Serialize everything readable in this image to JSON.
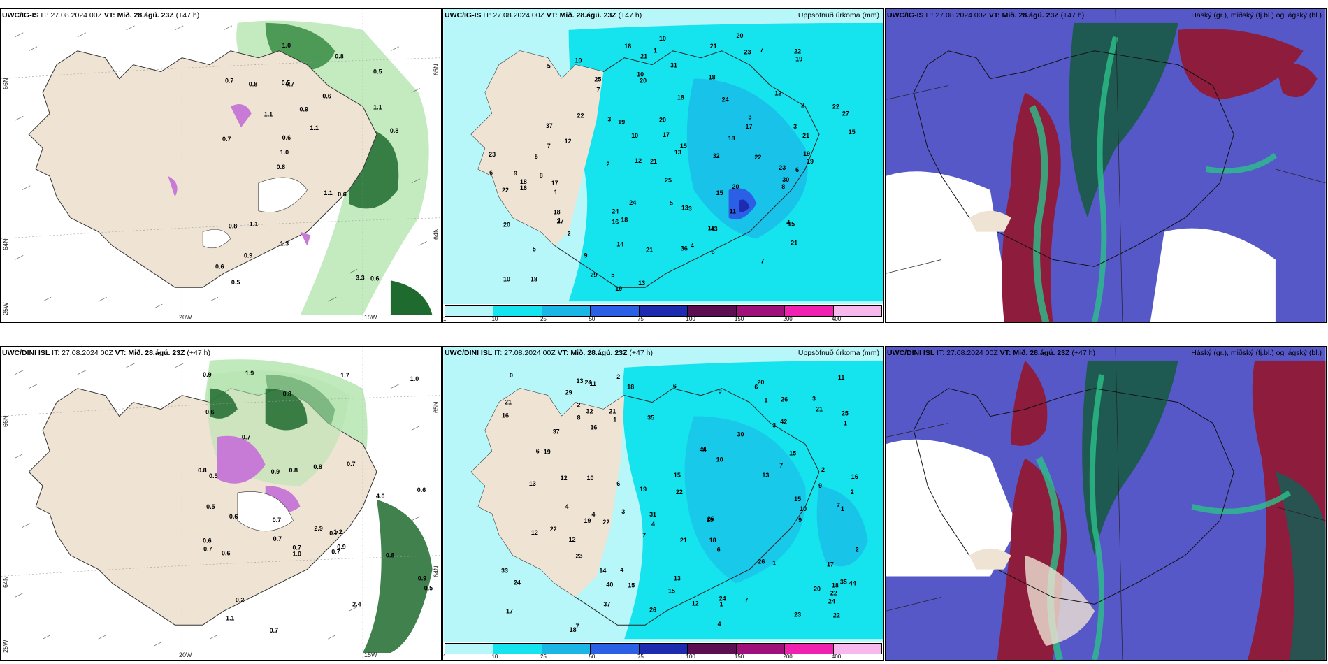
{
  "colors": {
    "land": "#efe3d4",
    "sea_white": "#ffffff",
    "precip_light": "#b7f7f9",
    "precip_cyan": "#15e3ee",
    "precip_deep": "#1ab7e6",
    "precip_blue": "#2b5fe6",
    "precip_navy": "#1c2bb0",
    "green_light": "#b5e5b0",
    "green_dark": "#1f6b2f",
    "cloud_blue": "#5758c8",
    "cloud_red": "#8e1c3c",
    "cloud_teal": "#1e5a52",
    "cloud_green": "#2bc08a"
  },
  "panels": [
    {
      "model": "UWC/IG-IS",
      "header": "IT: 27.08.2024 00Z",
      "vt_label": "VT:",
      "vt": "Mið. 28.ágú. 23Z",
      "lead": "(+47 h)",
      "right_title": "",
      "lon_labels": [
        "20W",
        "15W"
      ],
      "lat_labels": [
        "66N",
        "64N",
        "25W",
        "65N",
        "64N"
      ],
      "numbers": [
        "0.6",
        "0.7",
        "0.5",
        "0.8",
        "0.6",
        "0.5",
        "0.5",
        "0.9",
        "0.8",
        "1.1",
        "0.6",
        "0.9",
        "0.7",
        "1.1",
        "0.6",
        "0.7",
        "1.0",
        "0.8",
        "1.1",
        "1.1",
        "1.0",
        "1.3",
        "0.6",
        "0.8",
        "0.8",
        "1.1",
        "3.3"
      ]
    },
    {
      "model": "UWC/IG-IS",
      "header": "IT: 27.08.2024 00Z",
      "vt_label": "VT:",
      "vt": "Mið. 28.ágú. 23Z",
      "lead": "(+47 h)",
      "right_title": "Uppsöfnuð úrkoma (mm)",
      "numbers": [
        "5",
        "7",
        "10",
        "12",
        "13",
        "12",
        "1",
        "1",
        "2",
        "3",
        "9",
        "10",
        "11",
        "13",
        "13",
        "18",
        "21",
        "23",
        "27",
        "5",
        "6",
        "1",
        "10",
        "15",
        "17",
        "14",
        "18",
        "21",
        "18",
        "20",
        "37",
        "2",
        "4",
        "5",
        "15",
        "16",
        "22",
        "32",
        "24",
        "30",
        "27",
        "31",
        "21",
        "17",
        "6",
        "7",
        "15",
        "36",
        "24",
        "43",
        "19",
        "29",
        "20",
        "21",
        "2",
        "3",
        "3",
        "4",
        "5",
        "5",
        "10",
        "20",
        "18",
        "12",
        "24",
        "20",
        "18",
        "18",
        "6",
        "7",
        "8",
        "9",
        "10",
        "8",
        "23",
        "25",
        "22",
        "21",
        "16",
        "19",
        "19",
        "7",
        "3",
        "22",
        "17",
        "18",
        "15",
        "19",
        "23",
        "19",
        "18",
        "21",
        "22",
        "22",
        "16",
        "20",
        "25"
      ],
      "colorbar": [
        "1",
        "10",
        "25",
        "50",
        "75",
        "100",
        "150",
        "200",
        "400"
      ]
    },
    {
      "model": "UWC/IG-IS",
      "header": "IT: 27.08.2024 00Z",
      "vt_label": "VT:",
      "vt": "Mið. 28.ágú. 23Z",
      "lead": "(+47 h)",
      "right_title": "Háský (gr.), miðský (fj.bl.) og lágský (bl.)"
    },
    {
      "model": "UWC/DINI ISL",
      "header": "IT: 27.08.2024 00Z",
      "vt_label": "VT:",
      "vt": "Mið. 28.ágú. 23Z",
      "lead": "(+47 h)",
      "right_title": "",
      "lon_labels": [
        "20W",
        "15W"
      ],
      "lat_labels": [
        "66N",
        "64N",
        "25W",
        "65N",
        "64N"
      ],
      "numbers": [
        "0.9",
        "0.5",
        "1.0",
        "0.7",
        "0.7",
        "0.8",
        "4.0",
        "1.2",
        "0.9",
        "0.8",
        "0.2",
        "0.8",
        "0.6",
        "0.7",
        "0.8",
        "0.9",
        "0.7",
        "0.7",
        "0.7",
        "0.7",
        "0.6",
        "0.7",
        "1.0",
        "1.1",
        "0.9",
        "1.7",
        "2.4",
        "0.5",
        "0.6",
        "0.5",
        "0.6",
        "0.7",
        "0.8",
        "0.6",
        "2.9",
        "1.9"
      ]
    },
    {
      "model": "UWC/DINI ISL",
      "header": "IT: 27.08.2024 00Z",
      "vt_label": "VT:",
      "vt": "Mið. 28.ágú. 23Z",
      "lead": "(+47 h)",
      "right_title": "Uppsöfnuð úrkoma (mm)",
      "numbers": [
        "9",
        "6",
        "7",
        "16",
        "18",
        "15",
        "12",
        "11",
        "17",
        "2",
        "4",
        "4",
        "1",
        "4",
        "6",
        "12",
        "21",
        "33",
        "3",
        "1",
        "13",
        "24",
        "19",
        "35",
        "15",
        "1",
        "1",
        "1",
        "1",
        "13",
        "15",
        "18",
        "16",
        "37",
        "2",
        "3",
        "8",
        "12",
        "17",
        "11",
        "19",
        "16",
        "13",
        "20",
        "13",
        "14",
        "3",
        "4",
        "2",
        "0",
        "20",
        "24",
        "22",
        "19",
        "25",
        "4",
        "2",
        "18",
        "7",
        "40",
        "21",
        "30",
        "26",
        "22",
        "31",
        "42",
        "26",
        "7",
        "10",
        "15",
        "35",
        "29",
        "2",
        "6",
        "8",
        "44",
        "44",
        "32",
        "26",
        "6",
        "10",
        "15",
        "37",
        "9",
        "10",
        "26",
        "6",
        "18",
        "23",
        "7",
        "7",
        "22",
        "24",
        "9",
        "23",
        "21",
        "21",
        "24",
        "22",
        "22",
        "19",
        "12"
      ],
      "colorbar": [
        "1",
        "10",
        "25",
        "50",
        "75",
        "100",
        "150",
        "200",
        "400"
      ]
    },
    {
      "model": "UWC/DINI ISL",
      "header": "IT: 27.08.2024 00Z",
      "vt_label": "VT:",
      "vt": "Mið. 28.ágú. 23Z",
      "lead": "(+47 h)",
      "right_title": "Háský (gr.), miðský (fj.bl.) og lágský (bl.)"
    }
  ]
}
